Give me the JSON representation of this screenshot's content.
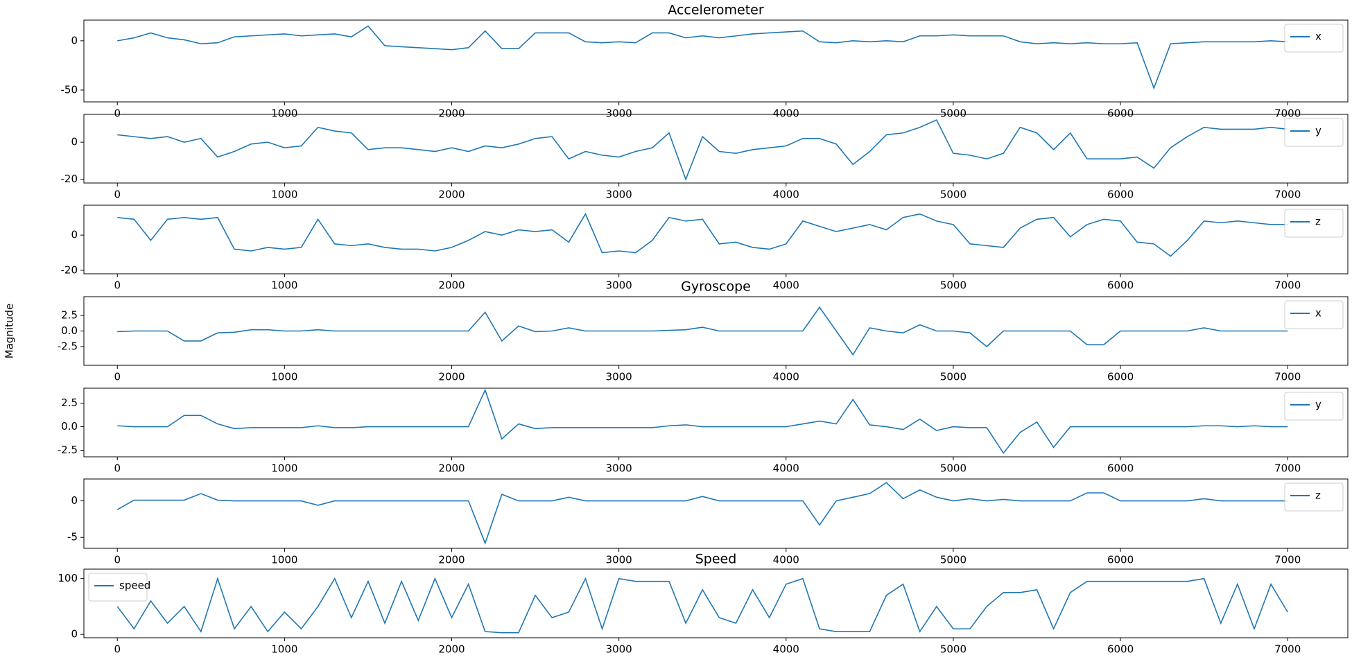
{
  "chart_data": [
    {
      "type": "line",
      "title": "Accelerometer",
      "x": [
        0,
        100,
        200,
        300,
        400,
        500,
        600,
        700,
        800,
        900,
        1000,
        1100,
        1200,
        1300,
        1400,
        1500,
        1600,
        1700,
        1800,
        1900,
        2000,
        2100,
        2200,
        2300,
        2400,
        2500,
        2600,
        2700,
        2800,
        2900,
        3000,
        3100,
        3200,
        3300,
        3400,
        3500,
        3600,
        3700,
        3800,
        3900,
        4000,
        4100,
        4200,
        4300,
        4400,
        4500,
        4600,
        4700,
        4800,
        4900,
        5000,
        5100,
        5200,
        5300,
        5400,
        5500,
        5600,
        5700,
        5800,
        5900,
        6000,
        6100,
        6200,
        6300,
        6400,
        6500,
        6600,
        6700,
        6800,
        6900,
        7000
      ],
      "series": [
        {
          "name": "x",
          "color": "#1f77b4",
          "values": [
            0,
            3,
            8,
            3,
            1,
            -3,
            -2,
            4,
            5,
            6,
            7,
            5,
            6,
            7,
            4,
            15,
            -5,
            -6,
            -7,
            -8,
            -9,
            -7,
            10,
            -8,
            -8,
            8,
            8,
            8,
            -1,
            -2,
            -1,
            -2,
            8,
            8,
            3,
            5,
            3,
            5,
            7,
            8,
            9,
            10,
            -1,
            -2,
            0,
            -1,
            0,
            -1,
            5,
            5,
            6,
            5,
            5,
            5,
            -1,
            -3,
            -2,
            -3,
            -2,
            -3,
            -3,
            -2,
            -48,
            -3,
            -2,
            -1,
            -1,
            -1,
            -1,
            0,
            -1
          ]
        }
      ],
      "xlim": [
        -200,
        7360
      ],
      "ylim": [
        -62,
        21
      ],
      "xticks": [
        0,
        1000,
        2000,
        3000,
        4000,
        5000,
        6000,
        7000
      ],
      "yticks": [
        -50,
        0
      ],
      "legend": "upper right"
    },
    {
      "type": "line",
      "x": [
        0,
        100,
        200,
        300,
        400,
        500,
        600,
        700,
        800,
        900,
        1000,
        1100,
        1200,
        1300,
        1400,
        1500,
        1600,
        1700,
        1800,
        1900,
        2000,
        2100,
        2200,
        2300,
        2400,
        2500,
        2600,
        2700,
        2800,
        2900,
        3000,
        3100,
        3200,
        3300,
        3400,
        3500,
        3600,
        3700,
        3800,
        3900,
        4000,
        4100,
        4200,
        4300,
        4400,
        4500,
        4600,
        4700,
        4800,
        4900,
        5000,
        5100,
        5200,
        5300,
        5400,
        5500,
        5600,
        5700,
        5800,
        5900,
        6000,
        6100,
        6200,
        6300,
        6400,
        6500,
        6600,
        6700,
        6800,
        6900,
        7000
      ],
      "series": [
        {
          "name": "y",
          "color": "#1f77b4",
          "values": [
            4,
            3,
            2,
            3,
            0,
            2,
            -8,
            -5,
            -1,
            0,
            -3,
            -2,
            8,
            6,
            5,
            -4,
            -3,
            -3,
            -4,
            -5,
            -3,
            -5,
            -2,
            -3,
            -1,
            2,
            3,
            -9,
            -5,
            -7,
            -8,
            -5,
            -3,
            5,
            -20,
            3,
            -5,
            -6,
            -4,
            -3,
            -2,
            2,
            2,
            -1,
            -12,
            -5,
            4,
            5,
            8,
            12,
            -6,
            -7,
            -9,
            -6,
            8,
            5,
            -4,
            5,
            -9,
            -9,
            -9,
            -8,
            -14,
            -3,
            3,
            8,
            7,
            7,
            7,
            8,
            7
          ]
        }
      ],
      "xlim": [
        -200,
        7360
      ],
      "ylim": [
        -22,
        15
      ],
      "xticks": [
        0,
        1000,
        2000,
        3000,
        4000,
        5000,
        6000,
        7000
      ],
      "yticks": [
        -20,
        0
      ],
      "legend": "upper right"
    },
    {
      "type": "line",
      "x": [
        0,
        100,
        200,
        300,
        400,
        500,
        600,
        700,
        800,
        900,
        1000,
        1100,
        1200,
        1300,
        1400,
        1500,
        1600,
        1700,
        1800,
        1900,
        2000,
        2100,
        2200,
        2300,
        2400,
        2500,
        2600,
        2700,
        2800,
        2900,
        3000,
        3100,
        3200,
        3300,
        3400,
        3500,
        3600,
        3700,
        3800,
        3900,
        4000,
        4100,
        4200,
        4300,
        4400,
        4500,
        4600,
        4700,
        4800,
        4900,
        5000,
        5100,
        5200,
        5300,
        5400,
        5500,
        5600,
        5700,
        5800,
        5900,
        6000,
        6100,
        6200,
        6300,
        6400,
        6500,
        6600,
        6700,
        6800,
        6900,
        7000
      ],
      "series": [
        {
          "name": "z",
          "color": "#1f77b4",
          "values": [
            10,
            9,
            -3,
            9,
            10,
            9,
            10,
            -8,
            -9,
            -7,
            -8,
            -7,
            9,
            -5,
            -6,
            -5,
            -7,
            -8,
            -8,
            -9,
            -7,
            -3,
            2,
            0,
            3,
            2,
            3,
            -4,
            12,
            -10,
            -9,
            -10,
            -3,
            10,
            8,
            9,
            -5,
            -4,
            -7,
            -8,
            -5,
            8,
            5,
            2,
            4,
            6,
            3,
            10,
            12,
            8,
            6,
            -5,
            -6,
            -7,
            4,
            9,
            10,
            -1,
            6,
            9,
            8,
            -4,
            -5,
            -12,
            -3,
            8,
            7,
            8,
            7,
            6,
            6
          ]
        }
      ],
      "xlim": [
        -200,
        7360
      ],
      "ylim": [
        -22,
        17
      ],
      "xticks": [
        0,
        1000,
        2000,
        3000,
        4000,
        5000,
        6000,
        7000
      ],
      "yticks": [
        -20,
        0
      ],
      "legend": "upper right"
    },
    {
      "type": "line",
      "title": "Gyroscope",
      "ylabel": "Magnitude",
      "x": [
        0,
        100,
        200,
        300,
        400,
        500,
        600,
        700,
        800,
        900,
        1000,
        1100,
        1200,
        1300,
        1400,
        1500,
        1600,
        1700,
        1800,
        1900,
        2000,
        2100,
        2200,
        2300,
        2400,
        2500,
        2600,
        2700,
        2800,
        2900,
        3000,
        3100,
        3200,
        3300,
        3400,
        3500,
        3600,
        3700,
        3800,
        3900,
        4000,
        4100,
        4200,
        4300,
        4400,
        4500,
        4600,
        4700,
        4800,
        4900,
        5000,
        5100,
        5200,
        5300,
        5400,
        5500,
        5600,
        5700,
        5800,
        5900,
        6000,
        6100,
        6200,
        6300,
        6400,
        6500,
        6600,
        6700,
        6800,
        6900,
        7000
      ],
      "series": [
        {
          "name": "x",
          "color": "#1f77b4",
          "values": [
            -0.1,
            0,
            0,
            0,
            -1.6,
            -1.6,
            -0.3,
            -0.2,
            0.2,
            0.2,
            0,
            0,
            0.2,
            0,
            0,
            0,
            0,
            0,
            0,
            0,
            0,
            0,
            3,
            -1.6,
            0.8,
            -0.1,
            0,
            0.5,
            0,
            0,
            0,
            0,
            0,
            0.1,
            0.2,
            0.6,
            0,
            0,
            0,
            0,
            0,
            0,
            3.8,
            0,
            -3.8,
            0.5,
            0,
            -0.3,
            1,
            0,
            0,
            -0.3,
            -2.5,
            0,
            0,
            0,
            0,
            0,
            -2.2,
            -2.2,
            0,
            0,
            0,
            0,
            0,
            0.5,
            0,
            0,
            0,
            0,
            0
          ]
        }
      ],
      "xlim": [
        -200,
        7360
      ],
      "ylim": [
        -5.5,
        5.5
      ],
      "xticks": [
        0,
        1000,
        2000,
        3000,
        4000,
        5000,
        6000,
        7000
      ],
      "yticks": [
        -2.5,
        {
          "value": 0,
          "label": "0.0"
        },
        2.5
      ],
      "legend": "upper right"
    },
    {
      "type": "line",
      "x": [
        0,
        100,
        200,
        300,
        400,
        500,
        600,
        700,
        800,
        900,
        1000,
        1100,
        1200,
        1300,
        1400,
        1500,
        1600,
        1700,
        1800,
        1900,
        2000,
        2100,
        2200,
        2300,
        2400,
        2500,
        2600,
        2700,
        2800,
        2900,
        3000,
        3100,
        3200,
        3300,
        3400,
        3500,
        3600,
        3700,
        3800,
        3900,
        4000,
        4100,
        4200,
        4300,
        4400,
        4500,
        4600,
        4700,
        4800,
        4900,
        5000,
        5100,
        5200,
        5300,
        5400,
        5500,
        5600,
        5700,
        5800,
        5900,
        6000,
        6100,
        6200,
        6300,
        6400,
        6500,
        6600,
        6700,
        6800,
        6900,
        7000
      ],
      "series": [
        {
          "name": "y",
          "color": "#1f77b4",
          "values": [
            0.1,
            0,
            0,
            0,
            1.2,
            1.2,
            0.3,
            -0.2,
            -0.1,
            -0.1,
            -0.1,
            -0.1,
            0.1,
            -0.1,
            -0.1,
            0,
            0,
            0,
            0,
            0,
            0,
            0,
            3.9,
            -1.3,
            0.3,
            -0.2,
            -0.1,
            -0.1,
            -0.1,
            -0.1,
            -0.1,
            -0.1,
            -0.1,
            0.1,
            0.2,
            0,
            0,
            0,
            0,
            0,
            0,
            0.3,
            0.6,
            0.3,
            2.9,
            0.2,
            0,
            -0.3,
            0.8,
            -0.4,
            0,
            -0.1,
            -0.1,
            -2.8,
            -0.6,
            0.5,
            -2.2,
            0,
            0,
            0,
            0,
            0,
            0,
            0,
            0,
            0.1,
            0.1,
            0,
            0.1,
            0,
            0
          ]
        }
      ],
      "xlim": [
        -200,
        7360
      ],
      "ylim": [
        -3.2,
        4.1
      ],
      "xticks": [
        0,
        1000,
        2000,
        3000,
        4000,
        5000,
        6000,
        7000
      ],
      "yticks": [
        -2.5,
        {
          "value": 0,
          "label": "0.0"
        },
        2.5
      ],
      "legend": "upper right"
    },
    {
      "type": "line",
      "x": [
        0,
        100,
        200,
        300,
        400,
        500,
        600,
        700,
        800,
        900,
        1000,
        1100,
        1200,
        1300,
        1400,
        1500,
        1600,
        1700,
        1800,
        1900,
        2000,
        2100,
        2200,
        2300,
        2400,
        2500,
        2600,
        2700,
        2800,
        2900,
        3000,
        3100,
        3200,
        3300,
        3400,
        3500,
        3600,
        3700,
        3800,
        3900,
        4000,
        4100,
        4200,
        4300,
        4400,
        4500,
        4600,
        4700,
        4800,
        4900,
        5000,
        5100,
        5200,
        5300,
        5400,
        5500,
        5600,
        5700,
        5800,
        5900,
        6000,
        6100,
        6200,
        6300,
        6400,
        6500,
        6600,
        6700,
        6800,
        6900,
        7000
      ],
      "series": [
        {
          "name": "z",
          "color": "#1f77b4",
          "values": [
            -1.2,
            0.1,
            0.1,
            0.1,
            0.1,
            1,
            0.1,
            0,
            0,
            0,
            0,
            0,
            -0.6,
            0,
            0,
            0,
            0,
            0,
            0,
            0,
            0,
            0,
            -5.8,
            0.9,
            0,
            0,
            0,
            0.5,
            0,
            0,
            0,
            0,
            0,
            0,
            0,
            0.6,
            0,
            0,
            0,
            0,
            0,
            0,
            -3.3,
            0,
            0.5,
            1,
            2.5,
            0.3,
            1.5,
            0.5,
            0,
            0.3,
            0,
            0.2,
            0,
            0,
            0,
            0,
            1.1,
            1.1,
            0,
            0,
            0,
            0,
            0,
            0.3,
            0,
            0,
            0,
            0,
            0
          ]
        }
      ],
      "xlim": [
        -200,
        7360
      ],
      "ylim": [
        -6.5,
        3
      ],
      "xticks": [
        0,
        1000,
        2000,
        3000,
        4000,
        5000,
        6000,
        7000
      ],
      "yticks": [
        -5,
        0
      ],
      "legend": "upper right"
    },
    {
      "type": "line",
      "title": "Speed",
      "x": [
        0,
        100,
        200,
        300,
        400,
        500,
        600,
        700,
        800,
        900,
        1000,
        1100,
        1200,
        1300,
        1400,
        1500,
        1600,
        1700,
        1800,
        1900,
        2000,
        2100,
        2200,
        2300,
        2400,
        2500,
        2600,
        2700,
        2800,
        2900,
        3000,
        3100,
        3200,
        3300,
        3400,
        3500,
        3600,
        3700,
        3800,
        3900,
        4000,
        4100,
        4200,
        4300,
        4400,
        4500,
        4600,
        4700,
        4800,
        4900,
        5000,
        5100,
        5200,
        5300,
        5400,
        5500,
        5600,
        5700,
        5800,
        5900,
        6000,
        6100,
        6200,
        6300,
        6400,
        6500,
        6600,
        6700,
        6800,
        6900,
        7000
      ],
      "series": [
        {
          "name": "speed",
          "color": "#1f77b4",
          "values": [
            50,
            10,
            60,
            20,
            50,
            5,
            100,
            10,
            50,
            5,
            40,
            10,
            50,
            100,
            30,
            95,
            20,
            95,
            25,
            100,
            30,
            90,
            5,
            3,
            3,
            70,
            30,
            40,
            100,
            10,
            100,
            95,
            95,
            95,
            20,
            80,
            30,
            20,
            80,
            30,
            90,
            100,
            10,
            5,
            5,
            5,
            70,
            90,
            5,
            50,
            10,
            10,
            50,
            75,
            75,
            80,
            10,
            75,
            95,
            95,
            95,
            95,
            95,
            95,
            95,
            100,
            20,
            90,
            10,
            90,
            40
          ]
        }
      ],
      "xlim": [
        -200,
        7360
      ],
      "ylim": [
        -6,
        117
      ],
      "xticks": [
        0,
        1000,
        2000,
        3000,
        4000,
        5000,
        6000,
        7000
      ],
      "yticks": [
        0,
        100
      ],
      "legend": "upper left"
    }
  ]
}
